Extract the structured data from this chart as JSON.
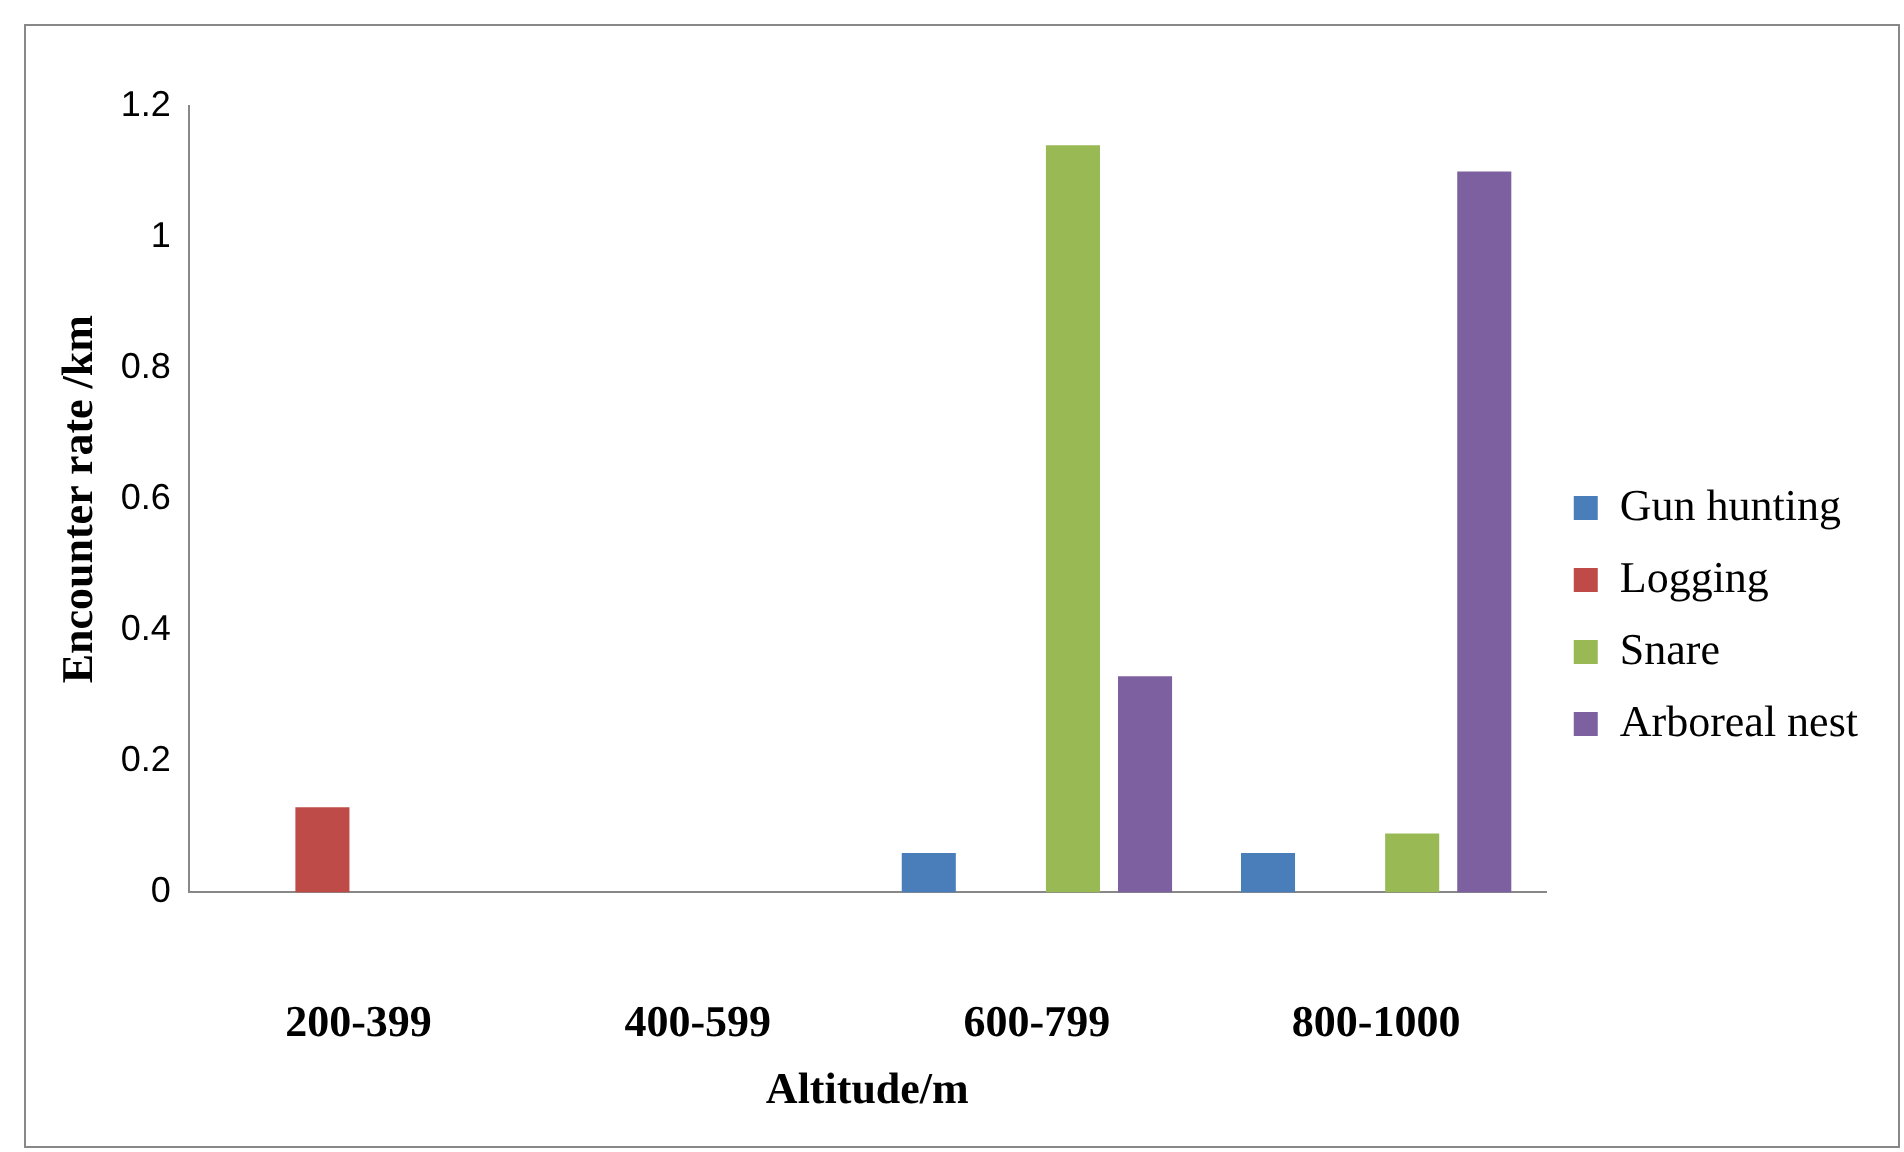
{
  "chart_data": {
    "type": "bar",
    "xlabel": "Altitude/m",
    "ylabel": "Encounter rate /km",
    "categories": [
      "200-399",
      "400-599",
      "600-799",
      "800-1000"
    ],
    "series": [
      {
        "name": "Gun hunting",
        "color": "#4a7ebb",
        "values": [
          0,
          0,
          0.06,
          0.06
        ]
      },
      {
        "name": "Logging",
        "color": "#be4b48",
        "values": [
          0.13,
          0,
          0,
          0
        ]
      },
      {
        "name": "Snare",
        "color": "#98b954",
        "values": [
          0,
          0,
          1.14,
          0.09
        ]
      },
      {
        "name": "Arboreal nest",
        "color": "#7d60a0",
        "values": [
          0,
          0,
          0.33,
          1.1
        ]
      }
    ],
    "ylim": [
      0,
      1.2
    ],
    "yticks": [
      0,
      0.2,
      0.4,
      0.6,
      0.8,
      1,
      1.2
    ],
    "grid": false,
    "legend": "right"
  }
}
